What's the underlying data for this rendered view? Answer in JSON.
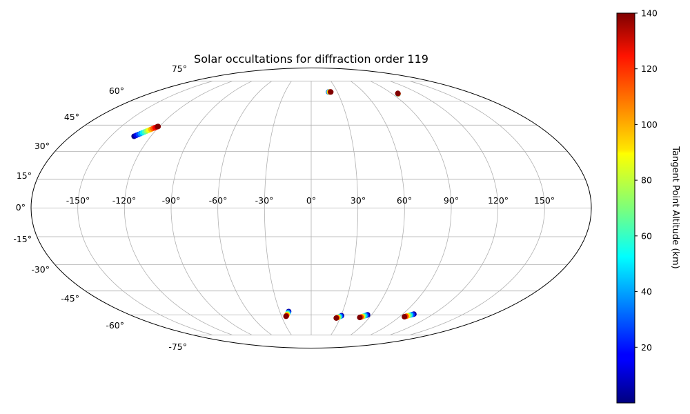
{
  "chart_data": {
    "type": "scatter",
    "projection": "mollweide",
    "title": "Solar occultations for diffraction order 119",
    "xlabel": "",
    "ylabel": "",
    "x_ticks": [
      "-150°",
      "-120°",
      "-90°",
      "-60°",
      "-30°",
      "0°",
      "30°",
      "60°",
      "90°",
      "120°",
      "150°"
    ],
    "y_ticks": [
      "-75°",
      "-60°",
      "-45°",
      "-30°",
      "-15°",
      "0°",
      "15°",
      "30°",
      "45°",
      "60°",
      "75°"
    ],
    "x_tick_values": [
      -150,
      -120,
      -90,
      -60,
      -30,
      0,
      30,
      60,
      90,
      120,
      150
    ],
    "y_tick_values": [
      -75,
      -60,
      -45,
      -30,
      -15,
      0,
      15,
      30,
      45,
      60,
      75
    ],
    "xlim": [
      -180,
      180
    ],
    "ylim": [
      -90,
      90
    ],
    "grid": true,
    "colormap": "jet",
    "colorbar": {
      "label": "Tangent Point Altitude (km)",
      "range": [
        0,
        140
      ],
      "ticks": [
        "20",
        "40",
        "60",
        "80",
        "100",
        "120",
        "140"
      ],
      "tick_values": [
        20,
        40,
        60,
        80,
        100,
        120,
        140
      ]
    },
    "series": [
      {
        "points": [
          {
            "lon": -132.5,
            "lat": 38.5,
            "alt": 2
          },
          {
            "lon": -131.5,
            "lat": 39.0,
            "alt": 14
          },
          {
            "lon": -130.5,
            "lat": 39.5,
            "alt": 26
          },
          {
            "lon": -129.5,
            "lat": 40.0,
            "alt": 38
          },
          {
            "lon": -128.5,
            "lat": 40.5,
            "alt": 50
          },
          {
            "lon": -127.5,
            "lat": 41.0,
            "alt": 62
          },
          {
            "lon": -126.5,
            "lat": 41.5,
            "alt": 74
          },
          {
            "lon": -125.5,
            "lat": 42.0,
            "alt": 86
          },
          {
            "lon": -124.5,
            "lat": 42.5,
            "alt": 98
          },
          {
            "lon": -123.5,
            "lat": 43.0,
            "alt": 110
          },
          {
            "lon": -122.5,
            "lat": 43.5,
            "alt": 122
          },
          {
            "lon": -121.5,
            "lat": 44.0,
            "alt": 134
          },
          {
            "lon": -121.0,
            "lat": 44.2,
            "alt": 140
          }
        ]
      },
      {
        "points": [
          {
            "lon": 20.0,
            "lat": 66.5,
            "alt": 20
          },
          {
            "lon": 20.5,
            "lat": 66.5,
            "alt": 50
          },
          {
            "lon": 21.0,
            "lat": 66.5,
            "alt": 90
          },
          {
            "lon": 22.0,
            "lat": 66.5,
            "alt": 130
          },
          {
            "lon": 22.5,
            "lat": 66.5,
            "alt": 140
          }
        ]
      },
      {
        "points": [
          {
            "lon": 96.0,
            "lat": 65.0,
            "alt": 50
          },
          {
            "lon": 96.5,
            "lat": 65.2,
            "alt": 110
          },
          {
            "lon": 97.0,
            "lat": 65.5,
            "alt": 140
          }
        ]
      },
      {
        "points": [
          {
            "lon": -21.5,
            "lat": -57.8,
            "alt": 5
          },
          {
            "lon": -22.0,
            "lat": -58.3,
            "alt": 25
          },
          {
            "lon": -22.6,
            "lat": -58.8,
            "alt": 45
          },
          {
            "lon": -23.2,
            "lat": -59.3,
            "alt": 65
          },
          {
            "lon": -23.8,
            "lat": -59.8,
            "alt": 85
          },
          {
            "lon": -24.4,
            "lat": -60.3,
            "alt": 105
          },
          {
            "lon": -25.0,
            "lat": -60.8,
            "alt": 125
          },
          {
            "lon": -25.5,
            "lat": -61.0,
            "alt": 140
          }
        ]
      },
      {
        "points": [
          {
            "lon": 30.5,
            "lat": -60.6,
            "alt": 5
          },
          {
            "lon": 29.8,
            "lat": -60.9,
            "alt": 25
          },
          {
            "lon": 29.0,
            "lat": -61.2,
            "alt": 45
          },
          {
            "lon": 28.2,
            "lat": -61.5,
            "alt": 65
          },
          {
            "lon": 27.4,
            "lat": -61.8,
            "alt": 90
          },
          {
            "lon": 26.6,
            "lat": -62.0,
            "alt": 115
          },
          {
            "lon": 26.0,
            "lat": -62.2,
            "alt": 140
          }
        ]
      },
      {
        "points": [
          {
            "lon": 56.0,
            "lat": -60.0,
            "alt": 5
          },
          {
            "lon": 55.0,
            "lat": -60.3,
            "alt": 25
          },
          {
            "lon": 54.0,
            "lat": -60.6,
            "alt": 45
          },
          {
            "lon": 53.0,
            "lat": -60.9,
            "alt": 65
          },
          {
            "lon": 52.0,
            "lat": -61.2,
            "alt": 90
          },
          {
            "lon": 51.0,
            "lat": -61.5,
            "alt": 115
          },
          {
            "lon": 50.0,
            "lat": -61.8,
            "alt": 140
          }
        ]
      },
      {
        "points": [
          {
            "lon": 101.0,
            "lat": -59.5,
            "alt": 5
          },
          {
            "lon": 100.0,
            "lat": -59.8,
            "alt": 25
          },
          {
            "lon": 99.0,
            "lat": -60.1,
            "alt": 45
          },
          {
            "lon": 98.0,
            "lat": -60.4,
            "alt": 65
          },
          {
            "lon": 97.0,
            "lat": -60.7,
            "alt": 90
          },
          {
            "lon": 96.0,
            "lat": -61.0,
            "alt": 115
          },
          {
            "lon": 95.0,
            "lat": -61.3,
            "alt": 140
          }
        ]
      }
    ]
  }
}
